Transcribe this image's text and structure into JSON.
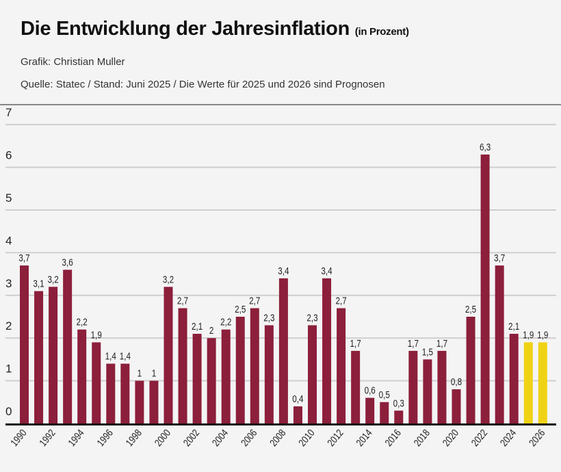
{
  "header": {
    "title": "Die Entwicklung der Jahresinflation",
    "title_unit": "(in Prozent)",
    "credit": "Grafik: Christian Muller",
    "source": "Quelle: Statec / Stand: Juni 2025 / Die Werte für 2025 und 2026 sind Prognosen"
  },
  "chart_data": {
    "type": "bar",
    "title": "Die Entwicklung der Jahresinflation (in Prozent)",
    "categories": [
      "1990",
      "1991",
      "1992",
      "1993",
      "1994",
      "1995",
      "1996",
      "1997",
      "1998",
      "1999",
      "2000",
      "2001",
      "2002",
      "2003",
      "2004",
      "2005",
      "2006",
      "2007",
      "2008",
      "2009",
      "2010",
      "2011",
      "2012",
      "2013",
      "2014",
      "2015",
      "2016",
      "2017",
      "2018",
      "2019",
      "2020",
      "2021",
      "2022",
      "2023",
      "2024",
      "2025",
      "2026"
    ],
    "values": [
      3.7,
      3.1,
      3.2,
      3.6,
      2.2,
      1.9,
      1.4,
      1.4,
      1,
      1,
      3.2,
      2.7,
      2.1,
      2,
      2.2,
      2.5,
      2.7,
      2.3,
      3.4,
      0.4,
      2.3,
      3.4,
      2.7,
      1.7,
      0.6,
      0.5,
      0.3,
      1.7,
      1.5,
      1.7,
      0.8,
      2.5,
      6.3,
      3.7,
      2.1,
      1.9,
      1.9
    ],
    "data_labels": [
      "3,7",
      "3,1",
      "3,2",
      "3,6",
      "2,2",
      "1,9",
      "1,4",
      "1,4",
      "1",
      "1",
      "3,2",
      "2,7",
      "2,1",
      "2",
      "2,2",
      "2,5",
      "2,7",
      "2,3",
      "3,4",
      "0,4",
      "2,3",
      "3,4",
      "2,7",
      "1,7",
      "0,6",
      "0,5",
      "0,3",
      "1,7",
      "1,5",
      "1,7",
      "0,8",
      "2,5",
      "6,3",
      "3,7",
      "2,1",
      "1,9",
      "1,9"
    ],
    "x_tick_labels": [
      "1990",
      "1992",
      "1994",
      "1996",
      "1998",
      "2000",
      "2002",
      "2004",
      "2006",
      "2008",
      "2010",
      "2012",
      "2014",
      "2016",
      "2018",
      "2020",
      "2022",
      "2024",
      "2026"
    ],
    "y_ticks": [
      0,
      1,
      2,
      3,
      4,
      5,
      6,
      7
    ],
    "ylim": [
      0,
      7
    ],
    "grid": true,
    "forecast_categories": [
      "2025",
      "2026"
    ],
    "colors": {
      "actual": "#8c1f3b",
      "forecast": "#f0d215"
    }
  }
}
